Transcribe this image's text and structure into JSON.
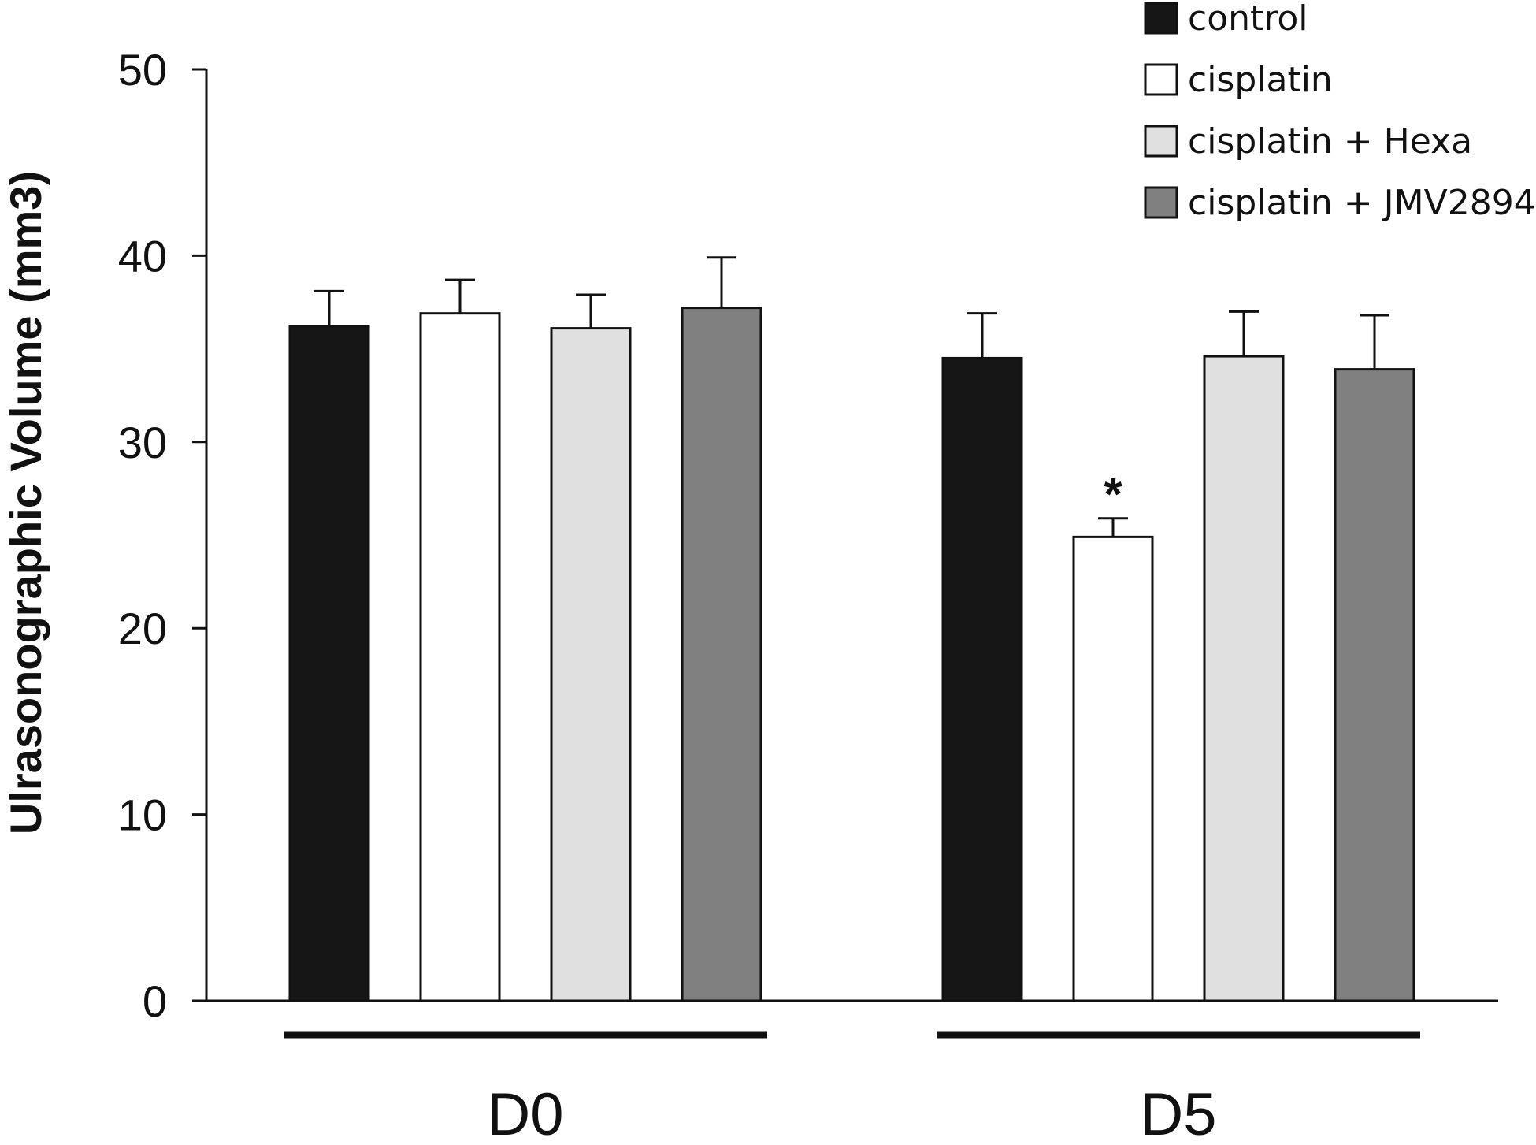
{
  "chart_data": {
    "type": "bar",
    "categories": [
      "D0",
      "D5"
    ],
    "ylabel": "Ulrasonographic Volume (mm3)",
    "ylim": [
      0,
      50
    ],
    "yticks": [
      "0",
      "10",
      "20",
      "30",
      "40",
      "50"
    ],
    "grid": false,
    "legend_position": "top-right",
    "series": [
      {
        "name": "control",
        "color": "#161616",
        "values": [
          36.2,
          34.5
        ],
        "errors": [
          1.9,
          2.4
        ]
      },
      {
        "name": "cisplatin",
        "color": "#ffffff",
        "values": [
          36.9,
          24.9
        ],
        "errors": [
          1.8,
          1.0
        ]
      },
      {
        "name": "cisplatin + Hexa",
        "color": "#e0e0e0",
        "values": [
          36.1,
          34.6
        ],
        "errors": [
          1.8,
          2.4
        ]
      },
      {
        "name": "cisplatin + JMV2894",
        "color": "#808080",
        "values": [
          37.2,
          33.9
        ],
        "errors": [
          2.7,
          2.9
        ]
      }
    ],
    "annotations": [
      {
        "text": "*",
        "category": "D5",
        "series": "cisplatin"
      }
    ]
  }
}
